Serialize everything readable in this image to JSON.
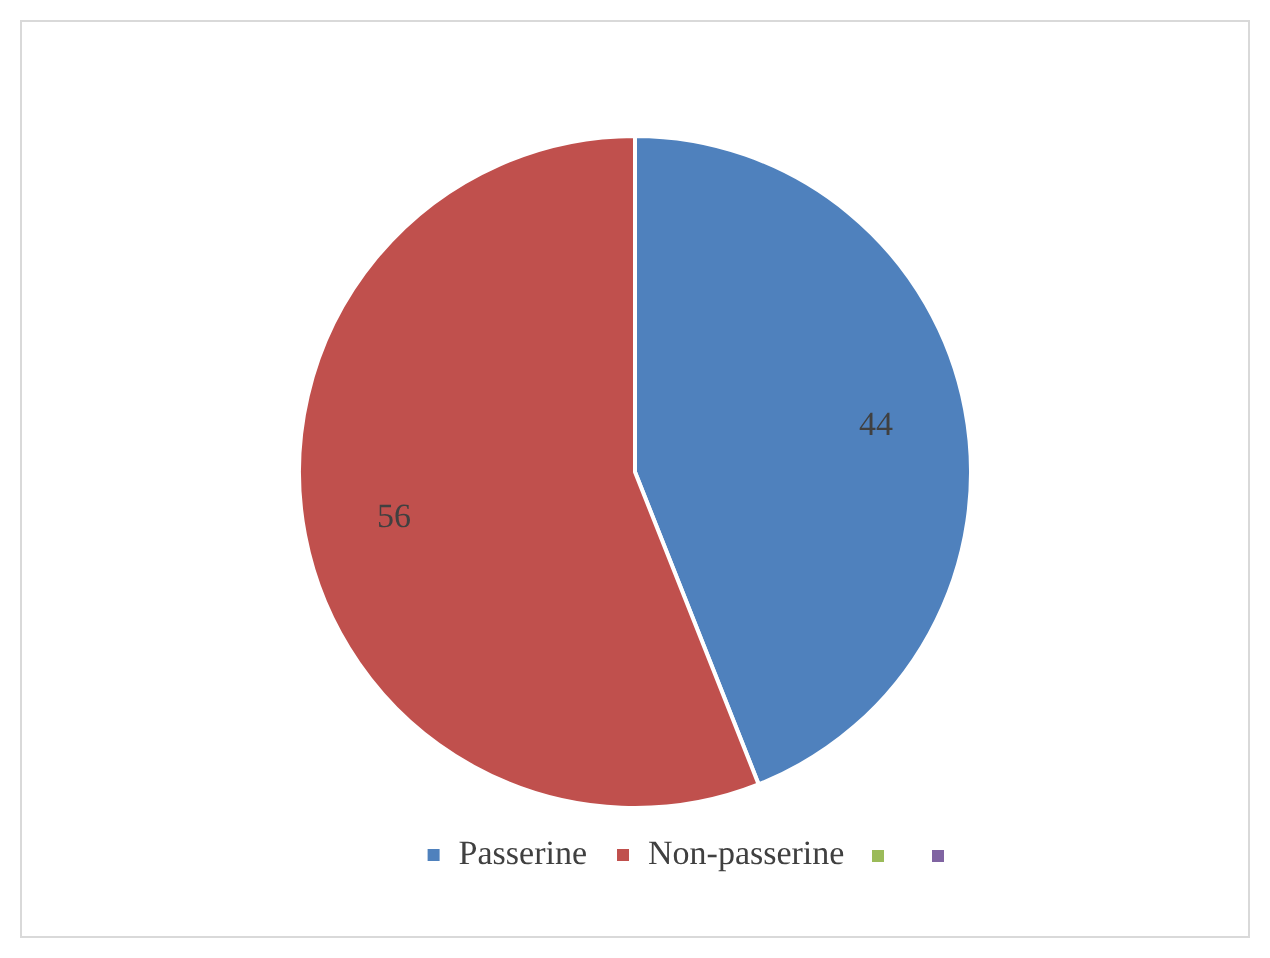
{
  "chart_data": {
    "type": "pie",
    "categories": [
      "Passerine",
      "Non-passerine"
    ],
    "values": [
      44,
      56
    ],
    "colors": [
      "#4f81bd",
      "#c0504d"
    ],
    "data_labels": true,
    "legend": "bottom"
  }
}
